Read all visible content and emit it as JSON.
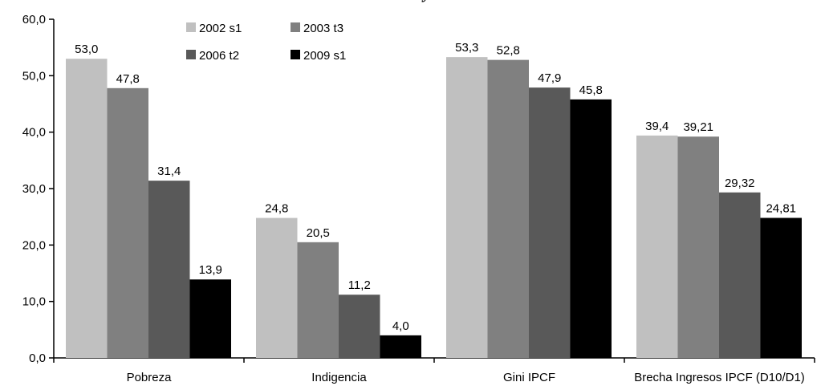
{
  "chart_data": {
    "type": "bar",
    "title": "y",
    "categories": [
      "Pobreza",
      "Indigencia",
      "Gini IPCF",
      "Brecha Ingresos IPCF  (D10/D1)"
    ],
    "series": [
      {
        "name": "2002 s1",
        "color": "#c0c0c0",
        "values": [
          53.0,
          24.8,
          53.3,
          39.4
        ],
        "labels": [
          "53,0",
          "24,8",
          "53,3",
          "39,4"
        ]
      },
      {
        "name": "2003 t3",
        "color": "#808080",
        "values": [
          47.8,
          20.5,
          52.8,
          39.21
        ],
        "labels": [
          "47,8",
          "20,5",
          "52,8",
          "39,21"
        ]
      },
      {
        "name": "2006 t2",
        "color": "#595959",
        "values": [
          31.4,
          11.2,
          47.9,
          29.32
        ],
        "labels": [
          "31,4",
          "11,2",
          "47,9",
          "29,32"
        ]
      },
      {
        "name": "2009 s1",
        "color": "#000000",
        "values": [
          13.9,
          4.0,
          45.8,
          24.81
        ],
        "labels": [
          "13,9",
          "4,0",
          "45,8",
          "24,81"
        ]
      }
    ],
    "ylim": [
      0,
      60
    ],
    "yticks": [
      0,
      10,
      20,
      30,
      40,
      50,
      60
    ],
    "ytick_labels": [
      "0,0",
      "10,0",
      "20,0",
      "30,0",
      "40,0",
      "50,0",
      "60,0"
    ],
    "grid": false,
    "legend_position": "top-left"
  }
}
